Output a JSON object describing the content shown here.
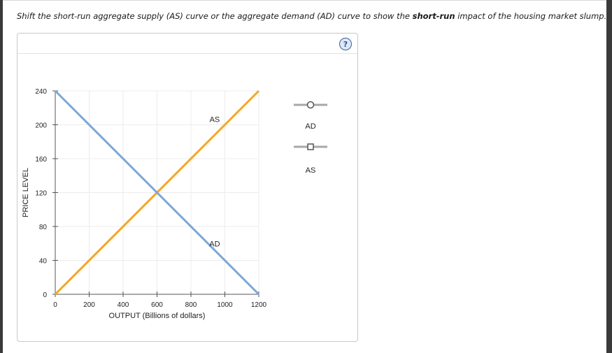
{
  "instruction": {
    "pre": "Shift the short-run aggregate supply (AS) curve or the aggregate demand (AD) curve to show the ",
    "bold": "short-run",
    "post": " impact of the housing market slump."
  },
  "help_icon": "?",
  "tools": [
    {
      "label": "AD",
      "marker": "circle"
    },
    {
      "label": "AS",
      "marker": "square"
    }
  ],
  "colors": {
    "ad": "#7ea6d8",
    "as": "#f5a623"
  },
  "chart_data": {
    "type": "line",
    "xlabel": "OUTPUT (Billions of dollars)",
    "ylabel": "PRICE LEVEL",
    "xlim": [
      0,
      1200
    ],
    "ylim": [
      0,
      240
    ],
    "xticks": [
      0,
      200,
      400,
      600,
      800,
      1000,
      1200
    ],
    "yticks": [
      0,
      40,
      80,
      120,
      160,
      200,
      240
    ],
    "grid": true,
    "series": [
      {
        "name": "AS",
        "x": [
          0,
          1200
        ],
        "y": [
          0,
          240
        ]
      },
      {
        "name": "AD",
        "x": [
          0,
          1200
        ],
        "y": [
          240,
          0
        ]
      }
    ]
  }
}
